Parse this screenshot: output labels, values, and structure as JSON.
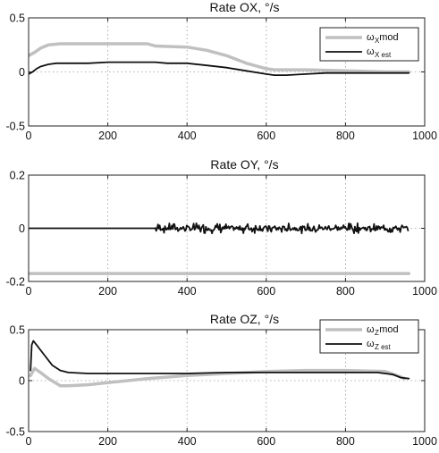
{
  "chart_data": [
    {
      "type": "line",
      "title": "Rate OX, °/s",
      "xlim": [
        0,
        1000
      ],
      "ylim": [
        -0.5,
        0.5
      ],
      "xticks": [
        "0",
        "200",
        "400",
        "600",
        "800",
        "1000"
      ],
      "yticks": [
        "0.5",
        "0",
        "-0.5"
      ],
      "ytick_values": [
        0.5,
        0,
        -0.5
      ],
      "grid": true,
      "legend_position": "top-right",
      "legend": [
        {
          "symbol": "ω",
          "sub": "X",
          "suffix": " mod"
        },
        {
          "symbol": "ω",
          "sub": "X est",
          "suffix": ""
        }
      ],
      "series": [
        {
          "color": "#c0c0c0",
          "width": 3.5,
          "x": [
            0,
            15,
            30,
            50,
            80,
            120,
            200,
            300,
            320,
            400,
            450,
            500,
            550,
            600,
            620,
            700,
            800,
            900,
            960
          ],
          "y": [
            0.15,
            0.18,
            0.22,
            0.25,
            0.26,
            0.26,
            0.26,
            0.26,
            0.24,
            0.23,
            0.2,
            0.15,
            0.08,
            0.03,
            0.02,
            0.02,
            0.01,
            0.0,
            0.0
          ]
        },
        {
          "color": "#111111",
          "width": 1.8,
          "x": [
            0,
            10,
            20,
            30,
            40,
            50,
            70,
            100,
            150,
            200,
            250,
            300,
            320,
            350,
            400,
            450,
            500,
            550,
            600,
            620,
            650,
            700,
            750,
            800,
            850,
            900,
            960
          ],
          "y": [
            -0.02,
            0.0,
            0.03,
            0.05,
            0.06,
            0.07,
            0.08,
            0.08,
            0.08,
            0.09,
            0.09,
            0.09,
            0.09,
            0.08,
            0.08,
            0.06,
            0.04,
            0.01,
            -0.02,
            -0.03,
            -0.03,
            -0.02,
            -0.01,
            -0.01,
            -0.01,
            -0.01,
            -0.01
          ]
        }
      ]
    },
    {
      "type": "line",
      "title": "Rate OY, °/s",
      "xlim": [
        0,
        1000
      ],
      "ylim": [
        -0.2,
        0.2
      ],
      "xticks": [
        "0",
        "200",
        "400",
        "600",
        "800",
        "1000"
      ],
      "yticks": [
        "0.2",
        "0",
        "-0.2"
      ],
      "ytick_values": [
        0.2,
        0,
        -0.2
      ],
      "grid": true,
      "legend": [],
      "series": [
        {
          "color": "#c0c0c0",
          "width": 3.5,
          "x": [
            0,
            960
          ],
          "y": [
            -0.17,
            -0.17
          ]
        },
        {
          "color": "#111111",
          "width": 1.8,
          "noise_from": 320,
          "noise_amplitude": 0.012,
          "x": [
            0,
            320,
            960
          ],
          "y": [
            0,
            0,
            0
          ]
        }
      ]
    },
    {
      "type": "line",
      "title": "Rate OZ, °/s",
      "xlim": [
        0,
        1000
      ],
      "ylim": [
        -0.5,
        0.5
      ],
      "xticks": [
        "0",
        "200",
        "400",
        "600",
        "800",
        "1000"
      ],
      "yticks": [
        "0.5",
        "0",
        "-0.5"
      ],
      "ytick_values": [
        0.5,
        0,
        -0.5
      ],
      "grid": true,
      "legend_position": "top-right",
      "legend": [
        {
          "symbol": "ω",
          "sub": "Z",
          "suffix": " mod"
        },
        {
          "symbol": "ω",
          "sub": "Z est",
          "suffix": ""
        }
      ],
      "series": [
        {
          "color": "#c0c0c0",
          "width": 3.5,
          "x": [
            5,
            15,
            30,
            50,
            80,
            100,
            150,
            200,
            250,
            300,
            400,
            500,
            600,
            700,
            800,
            900,
            930,
            950
          ],
          "y": [
            0.05,
            0.12,
            0.08,
            0.02,
            -0.05,
            -0.05,
            -0.04,
            -0.02,
            0.0,
            0.02,
            0.05,
            0.07,
            0.09,
            0.1,
            0.1,
            0.09,
            0.05,
            0.02
          ]
        },
        {
          "color": "#111111",
          "width": 1.8,
          "x": [
            5,
            8,
            12,
            20,
            40,
            60,
            80,
            100,
            150,
            200,
            300,
            400,
            500,
            600,
            700,
            800,
            850,
            880,
            900,
            920,
            940,
            960
          ],
          "y": [
            0.1,
            0.35,
            0.39,
            0.35,
            0.25,
            0.15,
            0.1,
            0.08,
            0.07,
            0.07,
            0.07,
            0.07,
            0.08,
            0.08,
            0.08,
            0.08,
            0.08,
            0.08,
            0.07,
            0.06,
            0.03,
            0.02
          ]
        }
      ]
    }
  ]
}
